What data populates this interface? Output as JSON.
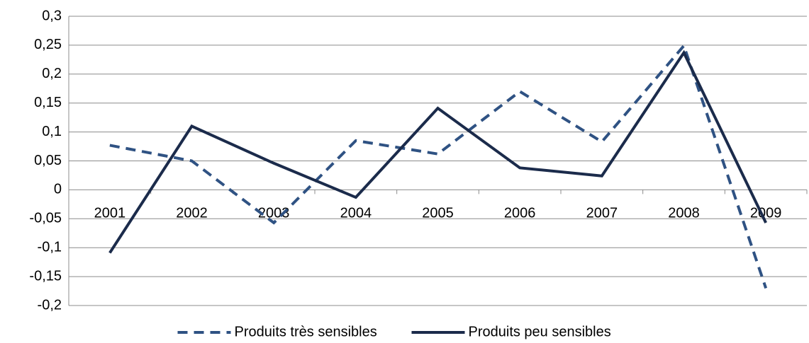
{
  "chart_data": {
    "type": "line",
    "categories": [
      "2001",
      "2002",
      "2003",
      "2004",
      "2005",
      "2006",
      "2007",
      "2008",
      "2009"
    ],
    "series": [
      {
        "name": "Produits très sensibles",
        "color": "#2f5283",
        "dashed": true,
        "values": [
          0.077,
          0.05,
          -0.057,
          0.085,
          0.062,
          0.17,
          0.083,
          0.249,
          -0.17
        ]
      },
      {
        "name": "Produits peu sensibles",
        "color": "#1b2b4b",
        "dashed": false,
        "values": [
          -0.109,
          0.11,
          0.046,
          -0.013,
          0.141,
          0.038,
          0.024,
          0.237,
          -0.057
        ]
      }
    ],
    "ylim": [
      -0.2,
      0.3
    ],
    "yticks": [
      {
        "value": -0.2,
        "label": "-0,2"
      },
      {
        "value": -0.15,
        "label": "-0,15"
      },
      {
        "value": -0.1,
        "label": "-0,1"
      },
      {
        "value": -0.05,
        "label": "-0,05"
      },
      0,
      {
        "value": 0.05,
        "label": "0,05"
      },
      {
        "value": 0.1,
        "label": "0,1"
      },
      {
        "value": 0.15,
        "label": "0,15"
      },
      {
        "value": 0.2,
        "label": "0,2"
      },
      {
        "value": 0.25,
        "label": "0,25"
      },
      {
        "value": 0.3,
        "label": "0,3"
      }
    ],
    "grid": true,
    "legend": "bottom"
  }
}
